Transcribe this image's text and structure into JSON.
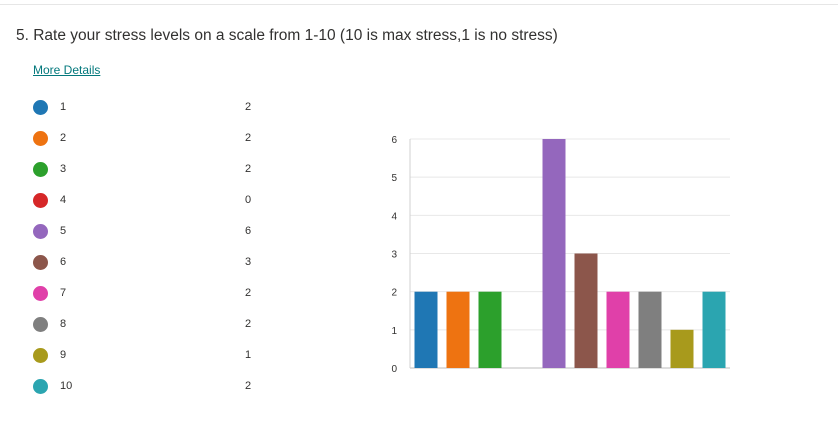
{
  "question": {
    "title": "5. Rate your stress levels on a scale from 1-10 (10 is max stress,1 is no stress)",
    "more_details_label": "More Details"
  },
  "legend": [
    {
      "label": "1",
      "count": "2",
      "color": "#1f77b4"
    },
    {
      "label": "2",
      "count": "2",
      "color": "#ee7311"
    },
    {
      "label": "3",
      "count": "2",
      "color": "#2ca02c"
    },
    {
      "label": "4",
      "count": "0",
      "color": "#d62728"
    },
    {
      "label": "5",
      "count": "6",
      "color": "#9467bd"
    },
    {
      "label": "6",
      "count": "3",
      "color": "#8c564b"
    },
    {
      "label": "7",
      "count": "2",
      "color": "#e040a9"
    },
    {
      "label": "8",
      "count": "2",
      "color": "#7f7f7f"
    },
    {
      "label": "9",
      "count": "1",
      "color": "#a89a1c"
    },
    {
      "label": "10",
      "count": "2",
      "color": "#2ba5b0"
    }
  ],
  "chart_data": {
    "type": "bar",
    "categories": [
      "1",
      "2",
      "3",
      "4",
      "5",
      "6",
      "7",
      "8",
      "9",
      "10"
    ],
    "values": [
      2,
      2,
      2,
      0,
      6,
      3,
      2,
      2,
      1,
      2
    ],
    "colors": [
      "#1f77b4",
      "#ee7311",
      "#2ca02c",
      "#d62728",
      "#9467bd",
      "#8c564b",
      "#e040a9",
      "#7f7f7f",
      "#a89a1c",
      "#2ba5b0"
    ],
    "title": "",
    "xlabel": "",
    "ylabel": "",
    "ylim": [
      0,
      6
    ],
    "yticks": [
      "0",
      "1",
      "2",
      "3",
      "4",
      "5",
      "6"
    ],
    "grid": true,
    "legend_placement": "left"
  }
}
